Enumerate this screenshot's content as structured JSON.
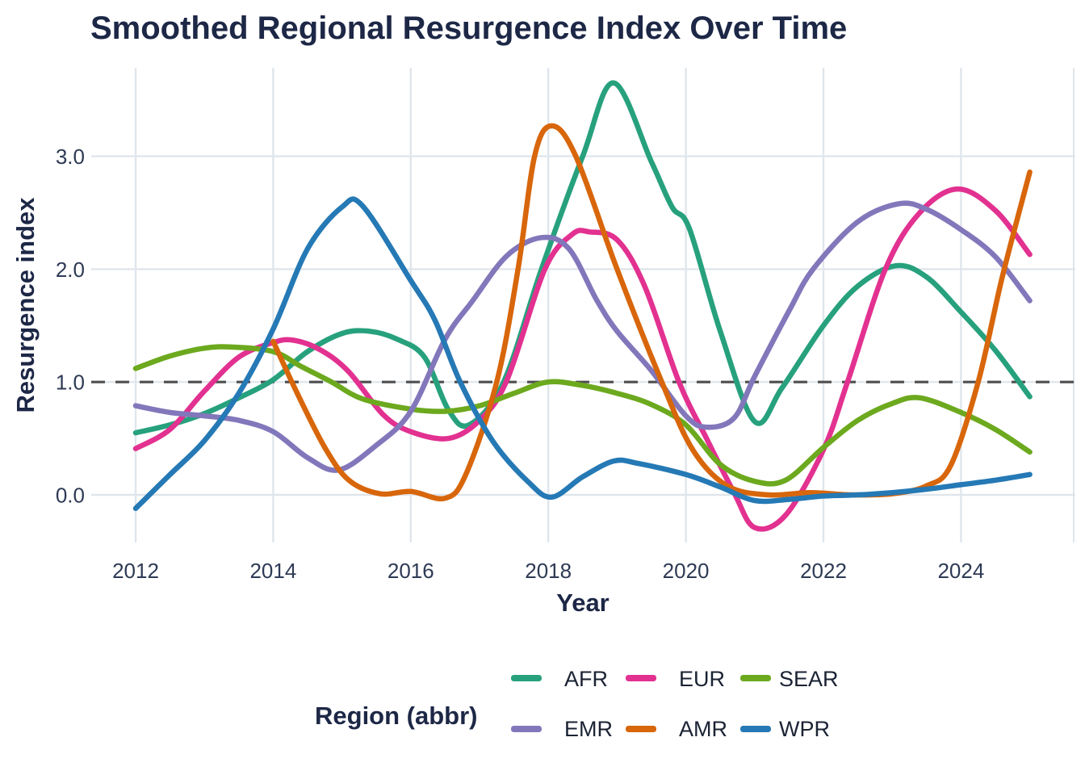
{
  "chart_data": {
    "type": "line",
    "title": "Smoothed Regional Resurgence Index Over Time",
    "xlabel": "Year",
    "ylabel": "Resurgence index",
    "grid": true,
    "legend_position": "bottom",
    "x_axis": {
      "label": "Year",
      "ticks": [
        2012,
        2014,
        2016,
        2018,
        2020,
        2022,
        2024
      ],
      "range": [
        2011.35,
        2025.65
      ]
    },
    "y_axis": {
      "label": "Resurgence index",
      "ticks": [
        {
          "value": 0,
          "label": "0.0"
        },
        {
          "value": 1,
          "label": "1.0"
        },
        {
          "value": 2,
          "label": "2.0"
        },
        {
          "value": 3,
          "label": "3.0"
        }
      ],
      "range": [
        -0.42,
        3.77
      ]
    },
    "reference_line": {
      "y": 1.0,
      "style": "dashed",
      "color": "#4e4e4e"
    },
    "legend": {
      "title": "Region (abbr)",
      "rows": [
        [
          "AFR",
          "EUR",
          "SEAR"
        ],
        [
          "EMR",
          "AMR",
          "WPR"
        ]
      ]
    },
    "series": [
      {
        "name": "AFR",
        "color": "#27a17d",
        "points": [
          [
            2012,
            0.55
          ],
          [
            2012.5,
            0.62
          ],
          [
            2013,
            0.72
          ],
          [
            2013.5,
            0.86
          ],
          [
            2014,
            1.02
          ],
          [
            2014.5,
            1.27
          ],
          [
            2015,
            1.43
          ],
          [
            2015.4,
            1.45
          ],
          [
            2015.8,
            1.38
          ],
          [
            2016.2,
            1.22
          ],
          [
            2016.55,
            0.75
          ],
          [
            2016.85,
            0.62
          ],
          [
            2017.35,
            1.0
          ],
          [
            2017.9,
            2.0
          ],
          [
            2018.5,
            3.0
          ],
          [
            2018.95,
            3.65
          ],
          [
            2019.5,
            2.95
          ],
          [
            2019.8,
            2.55
          ],
          [
            2020.05,
            2.36
          ],
          [
            2020.5,
            1.45
          ],
          [
            2021,
            0.65
          ],
          [
            2021.4,
            0.95
          ],
          [
            2022,
            1.5
          ],
          [
            2022.5,
            1.85
          ],
          [
            2023.05,
            2.03
          ],
          [
            2023.5,
            1.93
          ],
          [
            2024,
            1.62
          ],
          [
            2024.5,
            1.28
          ],
          [
            2025,
            0.87
          ]
        ]
      },
      {
        "name": "EUR",
        "color": "#e23190",
        "points": [
          [
            2012,
            0.41
          ],
          [
            2012.5,
            0.58
          ],
          [
            2013,
            0.92
          ],
          [
            2013.5,
            1.22
          ],
          [
            2014,
            1.35
          ],
          [
            2014.3,
            1.37
          ],
          [
            2014.7,
            1.28
          ],
          [
            2015.1,
            1.09
          ],
          [
            2015.6,
            0.71
          ],
          [
            2016,
            0.56
          ],
          [
            2016.55,
            0.5
          ],
          [
            2017,
            0.66
          ],
          [
            2017.4,
            1.02
          ],
          [
            2017.95,
            2.0
          ],
          [
            2018.35,
            2.31
          ],
          [
            2018.6,
            2.33
          ],
          [
            2019,
            2.26
          ],
          [
            2019.4,
            1.85
          ],
          [
            2019.9,
            1.0
          ],
          [
            2020.3,
            0.5
          ],
          [
            2020.7,
            0.02
          ],
          [
            2021,
            -0.29
          ],
          [
            2021.45,
            -0.18
          ],
          [
            2022,
            0.4
          ],
          [
            2022.35,
            1.0
          ],
          [
            2022.9,
            2.0
          ],
          [
            2023.4,
            2.5
          ],
          [
            2023.95,
            2.71
          ],
          [
            2024.5,
            2.52
          ],
          [
            2025,
            2.13
          ]
        ]
      },
      {
        "name": "SEAR",
        "color": "#6ca91e",
        "points": [
          [
            2012,
            1.12
          ],
          [
            2012.5,
            1.23
          ],
          [
            2013,
            1.3
          ],
          [
            2013.4,
            1.31
          ],
          [
            2014,
            1.27
          ],
          [
            2014.4,
            1.14
          ],
          [
            2014.85,
            1.0
          ],
          [
            2015.3,
            0.85
          ],
          [
            2016,
            0.76
          ],
          [
            2016.5,
            0.74
          ],
          [
            2017,
            0.79
          ],
          [
            2017.5,
            0.9
          ],
          [
            2018,
            1.0
          ],
          [
            2018.5,
            0.97
          ],
          [
            2019,
            0.9
          ],
          [
            2019.5,
            0.8
          ],
          [
            2020,
            0.62
          ],
          [
            2020.5,
            0.27
          ],
          [
            2021,
            0.12
          ],
          [
            2021.45,
            0.13
          ],
          [
            2022,
            0.42
          ],
          [
            2022.5,
            0.66
          ],
          [
            2023,
            0.81
          ],
          [
            2023.4,
            0.86
          ],
          [
            2024,
            0.73
          ],
          [
            2024.5,
            0.58
          ],
          [
            2025,
            0.38
          ]
        ]
      },
      {
        "name": "EMR",
        "color": "#8377bb",
        "points": [
          [
            2012,
            0.79
          ],
          [
            2012.5,
            0.73
          ],
          [
            2013,
            0.7
          ],
          [
            2013.5,
            0.66
          ],
          [
            2014,
            0.56
          ],
          [
            2014.5,
            0.33
          ],
          [
            2014.95,
            0.22
          ],
          [
            2015.5,
            0.44
          ],
          [
            2016,
            0.74
          ],
          [
            2016.5,
            1.38
          ],
          [
            2016.9,
            1.72
          ],
          [
            2017.4,
            2.12
          ],
          [
            2017.9,
            2.28
          ],
          [
            2018.3,
            2.18
          ],
          [
            2018.7,
            1.73
          ],
          [
            2019,
            1.45
          ],
          [
            2019.5,
            1.1
          ],
          [
            2020,
            0.7
          ],
          [
            2020.3,
            0.6
          ],
          [
            2020.7,
            0.68
          ],
          [
            2021,
            1.05
          ],
          [
            2021.5,
            1.63
          ],
          [
            2021.85,
            2.0
          ],
          [
            2022.5,
            2.42
          ],
          [
            2023.1,
            2.58
          ],
          [
            2023.5,
            2.53
          ],
          [
            2024,
            2.35
          ],
          [
            2024.5,
            2.11
          ],
          [
            2025,
            1.72
          ]
        ]
      },
      {
        "name": "AMR",
        "color": "#d8660b",
        "points": [
          [
            2014,
            1.36
          ],
          [
            2014.35,
            0.9
          ],
          [
            2014.75,
            0.42
          ],
          [
            2015.1,
            0.13
          ],
          [
            2015.55,
            0.01
          ],
          [
            2016,
            0.03
          ],
          [
            2016.5,
            -0.03
          ],
          [
            2016.8,
            0.18
          ],
          [
            2017.25,
            1.0
          ],
          [
            2017.56,
            2.0
          ],
          [
            2017.8,
            3.0
          ],
          [
            2018.05,
            3.27
          ],
          [
            2018.4,
            3.0
          ],
          [
            2019,
            2.0
          ],
          [
            2019.65,
            1.0
          ],
          [
            2020.1,
            0.4
          ],
          [
            2020.6,
            0.08
          ],
          [
            2021.2,
            0.0
          ],
          [
            2021.8,
            0.02
          ],
          [
            2022.4,
            0.0
          ],
          [
            2023,
            0.01
          ],
          [
            2023.5,
            0.08
          ],
          [
            2023.85,
            0.26
          ],
          [
            2024.25,
            1.0
          ],
          [
            2024.6,
            1.93
          ],
          [
            2025,
            2.86
          ]
        ]
      },
      {
        "name": "WPR",
        "color": "#2579b5",
        "points": [
          [
            2012,
            -0.12
          ],
          [
            2012.5,
            0.18
          ],
          [
            2013,
            0.48
          ],
          [
            2013.5,
            0.9
          ],
          [
            2014,
            1.47
          ],
          [
            2014.5,
            2.18
          ],
          [
            2015,
            2.55
          ],
          [
            2015.3,
            2.56
          ],
          [
            2016,
            1.9
          ],
          [
            2016.35,
            1.55
          ],
          [
            2016.72,
            1.0
          ],
          [
            2017.2,
            0.47
          ],
          [
            2017.7,
            0.12
          ],
          [
            2018.05,
            -0.02
          ],
          [
            2018.5,
            0.16
          ],
          [
            2018.95,
            0.3
          ],
          [
            2019.3,
            0.28
          ],
          [
            2020,
            0.18
          ],
          [
            2020.5,
            0.07
          ],
          [
            2021,
            -0.05
          ],
          [
            2021.5,
            -0.04
          ],
          [
            2022,
            -0.01
          ],
          [
            2022.5,
            0.0
          ],
          [
            2023,
            0.02
          ],
          [
            2023.5,
            0.05
          ],
          [
            2024,
            0.09
          ],
          [
            2024.5,
            0.13
          ],
          [
            2025,
            0.18
          ]
        ]
      }
    ]
  }
}
